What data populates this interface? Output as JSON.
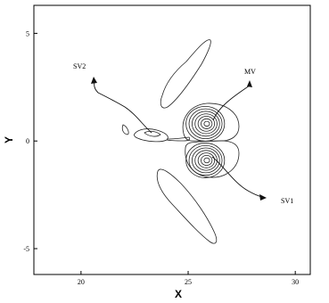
{
  "chart_data": {
    "type": "contour",
    "xlabel": "X",
    "ylabel": "Y",
    "xlim": [
      17.8,
      30.7
    ],
    "ylim": [
      -6.2,
      6.3
    ],
    "x_ticks": [
      20,
      25,
      30
    ],
    "y_ticks": [
      -5,
      0,
      5
    ],
    "grid": false,
    "colors": {
      "line": "#222222",
      "background": "#ffffff"
    },
    "annotations": [
      {
        "label": "MV",
        "text_at": [
          27.5,
          3.3
        ],
        "arrow_tail": [
          25.9,
          0.9
        ],
        "arrow_head": [
          27.9,
          2.7
        ]
      },
      {
        "label": "SV2",
        "text_at": [
          18.1,
          4.4
        ],
        "arrow_tail": [
          24.4,
          0.3
        ],
        "arrow_head": [
          21.3,
          3.0
        ]
      },
      {
        "label": "SV1",
        "text_at": [
          28.9,
          -2.9
        ],
        "arrow_tail": [
          25.9,
          -0.9
        ],
        "arrow_head": [
          28.5,
          -2.6
        ]
      }
    ],
    "vortices": [
      {
        "name": "MV",
        "center": [
          25.8,
          0.8
        ],
        "radius": [
          0.9,
          0.85
        ],
        "levels": 7
      },
      {
        "name": "SV1",
        "center": [
          25.8,
          -0.9
        ],
        "radius": [
          0.9,
          0.85
        ],
        "levels": 7
      }
    ]
  }
}
